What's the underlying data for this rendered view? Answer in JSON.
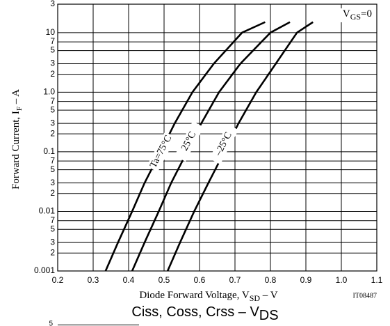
{
  "chart_data": {
    "type": "line",
    "x_label": [
      "Diode Forward Voltage, V",
      "SD",
      " – V"
    ],
    "y_label": [
      "Forward Current, I",
      "F",
      " – A"
    ],
    "annotation": [
      "V",
      "GS",
      "=0"
    ],
    "figure_code": "IT08487",
    "next_chart_title": [
      "Ciss, Coss, Crss – V",
      "DS"
    ],
    "next_chart_tick": 5,
    "log_y": true,
    "grid": true,
    "xlim": [
      0.2,
      1.1
    ],
    "xticks": [
      0.2,
      0.3,
      0.4,
      0.5,
      0.6,
      0.7,
      0.8,
      0.9,
      {
        "value": 1,
        "label": "1.0"
      },
      1.1
    ],
    "ylim": [
      0.001,
      30
    ],
    "yticks": [
      {
        "value": 30,
        "label": "3"
      },
      10,
      {
        "value": 7,
        "label": "7"
      },
      {
        "value": 5,
        "label": "5"
      },
      {
        "value": 3,
        "label": "3"
      },
      {
        "value": 2,
        "label": "2"
      },
      {
        "value": 1,
        "label": "1.0"
      },
      {
        "value": 0.7,
        "label": "7"
      },
      {
        "value": 0.5,
        "label": "5"
      },
      {
        "value": 0.3,
        "label": "3"
      },
      {
        "value": 0.2,
        "label": "2"
      },
      0.1,
      {
        "value": 0.07,
        "label": "7"
      },
      {
        "value": 0.05,
        "label": "5"
      },
      {
        "value": 0.03,
        "label": "3"
      },
      {
        "value": 0.02,
        "label": "2"
      },
      0.01,
      {
        "value": 0.007,
        "label": "7"
      },
      {
        "value": 0.005,
        "label": "5"
      },
      {
        "value": 0.003,
        "label": "3"
      },
      {
        "value": 0.002,
        "label": "2"
      },
      0.001
    ],
    "series": [
      {
        "name": "Ta=75°C",
        "color": "#000000",
        "x": [
          0.335,
          0.37,
          0.41,
          0.445,
          0.49,
          0.53,
          0.58,
          0.64,
          0.72,
          0.785
        ],
        "values": [
          0.001,
          0.003,
          0.01,
          0.03,
          0.1,
          0.3,
          1,
          3,
          10,
          15
        ]
      },
      {
        "name": "25°C",
        "color": "#000000",
        "x": [
          0.41,
          0.445,
          0.485,
          0.52,
          0.565,
          0.605,
          0.655,
          0.715,
          0.8,
          0.855
        ],
        "values": [
          0.001,
          0.003,
          0.01,
          0.03,
          0.1,
          0.3,
          1,
          3,
          10,
          15
        ]
      },
      {
        "name": "–25°C",
        "color": "#000000",
        "x": [
          0.51,
          0.545,
          0.585,
          0.625,
          0.67,
          0.71,
          0.76,
          0.815,
          0.875,
          0.92
        ],
        "values": [
          0.001,
          0.003,
          0.01,
          0.03,
          0.1,
          0.3,
          1,
          3,
          10,
          15
        ]
      }
    ]
  }
}
